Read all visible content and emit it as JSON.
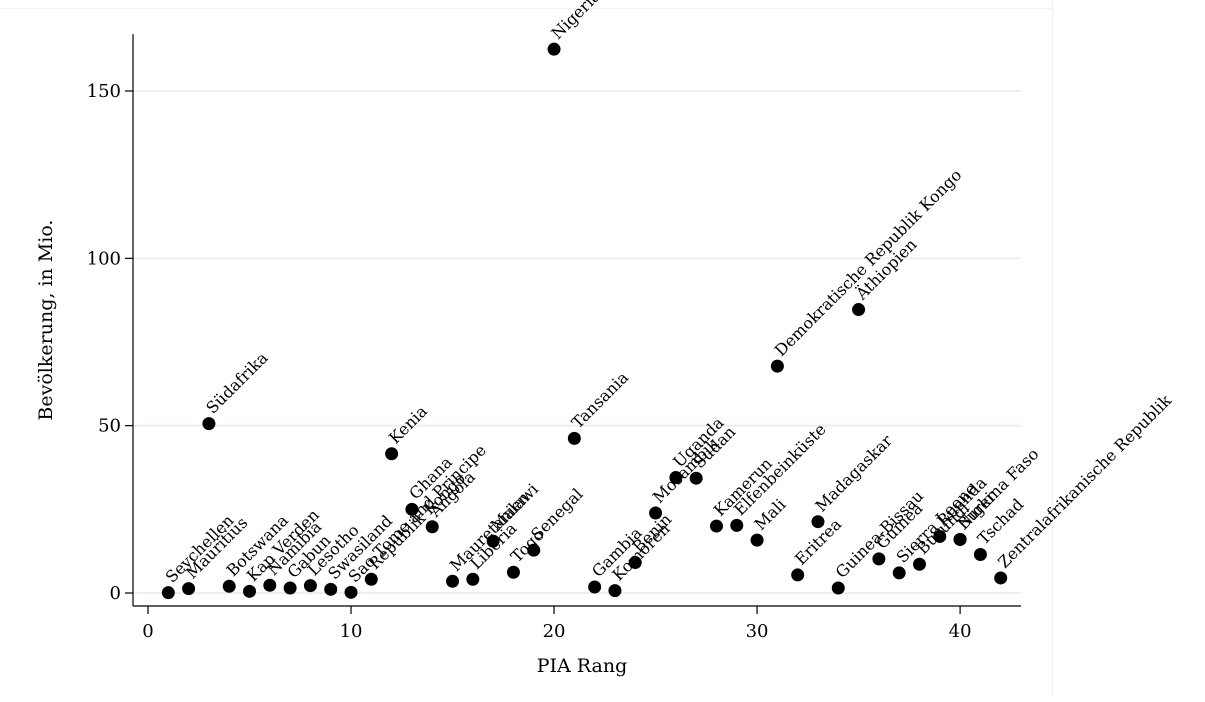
{
  "chart_data": {
    "type": "scatter",
    "title": "",
    "xlabel": "PIA Rang",
    "ylabel": "Bevölkerung, in Mio.",
    "xlim": [
      0,
      43
    ],
    "ylim": [
      -5,
      167
    ],
    "x_ticks": [
      0,
      10,
      20,
      30,
      40
    ],
    "y_ticks": [
      0,
      50,
      100,
      150
    ],
    "x_tick_labels": [
      "0",
      "10",
      "20",
      "30",
      "40"
    ],
    "y_tick_labels": [
      "0",
      "50",
      "100",
      "150"
    ],
    "grid": "horizontal",
    "marker_color": "#000000",
    "grid_color": "#e8f0f2",
    "points": [
      {
        "label": "Seychellen",
        "x": 1,
        "y": 0.1
      },
      {
        "label": "Mauritius",
        "x": 2,
        "y": 1.3
      },
      {
        "label": "Südafrika",
        "x": 3,
        "y": 50.6
      },
      {
        "label": "Botswana",
        "x": 4,
        "y": 2.0
      },
      {
        "label": "Kap Verden",
        "x": 5,
        "y": 0.5
      },
      {
        "label": "Namibia",
        "x": 6,
        "y": 2.3
      },
      {
        "label": "Gabun",
        "x": 7,
        "y": 1.5
      },
      {
        "label": "Lesotho",
        "x": 8,
        "y": 2.2
      },
      {
        "label": "Swasiland",
        "x": 9,
        "y": 1.1
      },
      {
        "label": "Sao Tome and Principe",
        "x": 10,
        "y": 0.2
      },
      {
        "label": "Republik Kongo",
        "x": 11,
        "y": 4.1
      },
      {
        "label": "Kenia",
        "x": 12,
        "y": 41.6
      },
      {
        "label": "Ghana",
        "x": 13,
        "y": 25.0
      },
      {
        "label": "Angola",
        "x": 14,
        "y": 19.8
      },
      {
        "label": "Mauretanien",
        "x": 15,
        "y": 3.5
      },
      {
        "label": "Liberia",
        "x": 16,
        "y": 4.1
      },
      {
        "label": "Malawi",
        "x": 17,
        "y": 15.5
      },
      {
        "label": "Togo",
        "x": 18,
        "y": 6.2
      },
      {
        "label": "Senegal",
        "x": 19,
        "y": 12.8
      },
      {
        "label": "Nigeria",
        "x": 20,
        "y": 162.5
      },
      {
        "label": "Tansania",
        "x": 21,
        "y": 46.2
      },
      {
        "label": "Gambia",
        "x": 22,
        "y": 1.8
      },
      {
        "label": "Komoren",
        "x": 23,
        "y": 0.7
      },
      {
        "label": "Benin",
        "x": 24,
        "y": 9.1
      },
      {
        "label": "Mosambik",
        "x": 25,
        "y": 23.9
      },
      {
        "label": "Uganda",
        "x": 26,
        "y": 34.5
      },
      {
        "label": "Sudan",
        "x": 27,
        "y": 34.3
      },
      {
        "label": "Kamerun",
        "x": 28,
        "y": 20.0
      },
      {
        "label": "Elfenbeinküste",
        "x": 29,
        "y": 20.2
      },
      {
        "label": "Mali",
        "x": 30,
        "y": 15.8
      },
      {
        "label": "Demokratische Republik Kongo",
        "x": 31,
        "y": 67.8
      },
      {
        "label": "Eritrea",
        "x": 32,
        "y": 5.4
      },
      {
        "label": "Madagaskar",
        "x": 33,
        "y": 21.3
      },
      {
        "label": "Guinea-Bissau",
        "x": 34,
        "y": 1.5
      },
      {
        "label": "Äthiopien",
        "x": 35,
        "y": 84.7
      },
      {
        "label": "Guinea",
        "x": 36,
        "y": 10.2
      },
      {
        "label": "Sierra Leone",
        "x": 37,
        "y": 6.0
      },
      {
        "label": "Burundi",
        "x": 38,
        "y": 8.6
      },
      {
        "label": "Ruanda",
        "x": 39,
        "y": 16.9
      },
      {
        "label": "Burkina Faso",
        "x": 40,
        "y": 16.0
      },
      {
        "label": "Niger",
        "x": 40,
        "y": 16.0
      },
      {
        "label": "Tschad",
        "x": 41,
        "y": 11.5
      },
      {
        "label": "Zentralafrikanische Republik",
        "x": 42,
        "y": 4.5
      }
    ]
  }
}
